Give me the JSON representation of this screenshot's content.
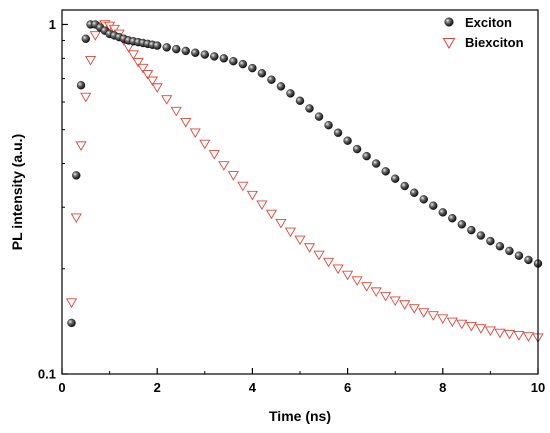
{
  "chart_data": {
    "type": "scatter",
    "xlabel": "Time (ns)",
    "ylabel": "PL intensity (a.u.)",
    "xlim": [
      0,
      10
    ],
    "ylim": [
      0.1,
      1.1
    ],
    "yscale": "log",
    "grid": false,
    "legend_position": "top-right",
    "x_ticks": [
      {
        "value": 0,
        "label": "0"
      },
      {
        "value": 2,
        "label": "2"
      },
      {
        "value": 4,
        "label": "4"
      },
      {
        "value": 6,
        "label": "6"
      },
      {
        "value": 8,
        "label": "8"
      },
      {
        "value": 10,
        "label": "10"
      }
    ],
    "y_ticks": [
      {
        "value": 0.1,
        "label": "0.1"
      },
      {
        "value": 1,
        "label": "1"
      }
    ],
    "series": [
      {
        "name": "Exciton",
        "marker": "sphere",
        "color": "#111111",
        "x": [
          0.2,
          0.3,
          0.4,
          0.5,
          0.6,
          0.7,
          0.8,
          0.9,
          1.0,
          1.1,
          1.2,
          1.3,
          1.4,
          1.5,
          1.6,
          1.7,
          1.8,
          1.9,
          2.0,
          2.2,
          2.4,
          2.6,
          2.8,
          3.0,
          3.2,
          3.4,
          3.6,
          3.8,
          4.0,
          4.2,
          4.4,
          4.6,
          4.8,
          5.0,
          5.2,
          5.4,
          5.6,
          5.8,
          6.0,
          6.2,
          6.4,
          6.6,
          6.8,
          7.0,
          7.2,
          7.4,
          7.6,
          7.8,
          8.0,
          8.2,
          8.4,
          8.6,
          8.8,
          9.0,
          9.2,
          9.4,
          9.6,
          9.8,
          10.0
        ],
        "y": [
          0.14,
          0.37,
          0.67,
          0.91,
          1.0,
          1.0,
          0.98,
          0.96,
          0.94,
          0.93,
          0.92,
          0.91,
          0.9,
          0.895,
          0.89,
          0.885,
          0.88,
          0.875,
          0.87,
          0.86,
          0.85,
          0.84,
          0.83,
          0.82,
          0.81,
          0.8,
          0.785,
          0.77,
          0.75,
          0.725,
          0.695,
          0.665,
          0.635,
          0.605,
          0.575,
          0.545,
          0.515,
          0.49,
          0.465,
          0.44,
          0.42,
          0.4,
          0.38,
          0.362,
          0.345,
          0.33,
          0.316,
          0.303,
          0.29,
          0.279,
          0.268,
          0.258,
          0.249,
          0.24,
          0.232,
          0.225,
          0.218,
          0.212,
          0.207
        ]
      },
      {
        "name": "Biexciton",
        "marker": "triangle-down",
        "color": "#d9473a",
        "x": [
          0.2,
          0.3,
          0.4,
          0.5,
          0.6,
          0.7,
          0.8,
          0.9,
          1.0,
          1.1,
          1.2,
          1.3,
          1.4,
          1.5,
          1.6,
          1.7,
          1.8,
          1.9,
          2.0,
          2.2,
          2.4,
          2.6,
          2.8,
          3.0,
          3.2,
          3.4,
          3.6,
          3.8,
          4.0,
          4.2,
          4.4,
          4.6,
          4.8,
          5.0,
          5.2,
          5.4,
          5.6,
          5.8,
          6.0,
          6.2,
          6.4,
          6.6,
          6.8,
          7.0,
          7.2,
          7.4,
          7.6,
          7.8,
          8.0,
          8.2,
          8.4,
          8.6,
          8.8,
          9.0,
          9.2,
          9.4,
          9.6,
          9.8,
          10.0
        ],
        "y": [
          0.16,
          0.28,
          0.45,
          0.62,
          0.79,
          0.93,
          0.99,
          1.0,
          0.99,
          0.97,
          0.94,
          0.9,
          0.86,
          0.82,
          0.78,
          0.75,
          0.72,
          0.69,
          0.66,
          0.61,
          0.565,
          0.525,
          0.49,
          0.455,
          0.425,
          0.395,
          0.37,
          0.345,
          0.325,
          0.305,
          0.287,
          0.27,
          0.255,
          0.242,
          0.23,
          0.219,
          0.209,
          0.2,
          0.192,
          0.185,
          0.178,
          0.172,
          0.167,
          0.162,
          0.158,
          0.154,
          0.15,
          0.147,
          0.144,
          0.141,
          0.139,
          0.137,
          0.135,
          0.133,
          0.131,
          0.13,
          0.129,
          0.128,
          0.127
        ]
      }
    ]
  }
}
